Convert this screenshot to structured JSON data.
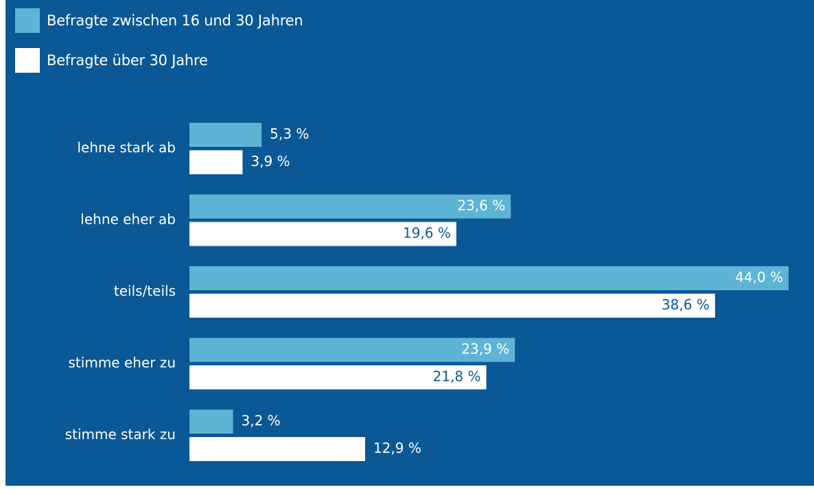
{
  "colors": {
    "background": "#0b5896",
    "series_young": "#5db4d5",
    "series_old": "#ffffff",
    "label_on_dark": "#ffffff",
    "label_on_white": "#0b5896"
  },
  "legend": {
    "young": "Befragte zwischen 16 und 30 Jahren",
    "old": "Befragte über 30 Jahre"
  },
  "chart_data": {
    "type": "bar",
    "orientation": "horizontal",
    "categories": [
      "lehne stark ab",
      "lehne eher ab",
      "teils/teils",
      "stimme eher zu",
      "stimme stark zu"
    ],
    "series": [
      {
        "name": "Befragte zwischen 16 und 30 Jahren",
        "values": [
          5.3,
          23.6,
          44.0,
          23.9,
          3.2
        ],
        "labels": [
          "5,3 %",
          "23,6 %",
          "44,0 %",
          "23,9 %",
          "3,2 %"
        ]
      },
      {
        "name": "Befragte über 30 Jahre",
        "values": [
          3.9,
          19.6,
          38.6,
          21.8,
          12.9
        ],
        "labels": [
          "3,9 %",
          "19,6 %",
          "38,6 %",
          "21,8 %",
          "12,9 %"
        ]
      }
    ],
    "xlim": [
      0,
      44.0
    ],
    "grid": false,
    "legend_position": "top-left"
  }
}
